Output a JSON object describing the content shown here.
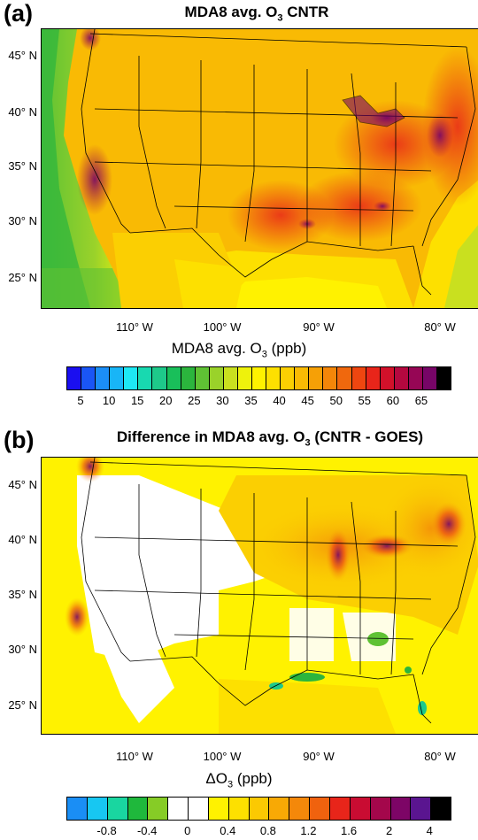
{
  "panel_a": {
    "letter": "(a)",
    "title": "MDA8 avg. O",
    "title_sub": "3",
    "title_tail": " CNTR",
    "xlabel_pre": "MDA8 avg. O",
    "xlabel_sub": "3",
    "xlabel_tail": " (ppb)",
    "lat_labels": [
      "45° N",
      "40° N",
      "35° N",
      "30° N",
      "25° N"
    ],
    "lon_labels": [
      "110° W",
      "100° W",
      "90° W",
      "80° W"
    ],
    "colorbar_ticks": [
      "5",
      "10",
      "15",
      "20",
      "25",
      "30",
      "35",
      "40",
      "45",
      "50",
      "55",
      "60",
      "65"
    ],
    "colorbar_colors": [
      "#1a0ff0",
      "#1a55f5",
      "#1b8ef7",
      "#18b5f7",
      "#1ee8f4",
      "#18d9b0",
      "#1ec98a",
      "#19bf5a",
      "#2bb53d",
      "#5fc234",
      "#9ad22a",
      "#c9e01f",
      "#eef20c",
      "#fff200",
      "#fde000",
      "#fbcf02",
      "#f9ba04",
      "#f6a006",
      "#f38609",
      "#f0680d",
      "#ee4610",
      "#e8251a",
      "#d2112a",
      "#b5083f",
      "#960655",
      "#770567",
      "#000000"
    ]
  },
  "panel_b": {
    "letter": "(b)",
    "title": "Difference in MDA8 avg. O",
    "title_sub": "3",
    "title_tail": " (CNTR - GOES)",
    "xlabel_pre": "ΔO",
    "xlabel_sub": "3",
    "xlabel_tail": " (ppb)",
    "lat_labels": [
      "45° N",
      "40° N",
      "35° N",
      "30° N",
      "25° N"
    ],
    "lon_labels": [
      "110° W",
      "100° W",
      "90° W",
      "80° W"
    ],
    "colorbar_ticks": [
      "-0.8",
      "-0.4",
      "0",
      "0.4",
      "0.8",
      "1.2",
      "1.6",
      "2",
      "4"
    ],
    "colorbar_colors": [
      "#1a8ef5",
      "#17c7f2",
      "#19d6a0",
      "#1fb83c",
      "#86cc26",
      "#ffffff",
      "#ffffff",
      "#fff200",
      "#fde000",
      "#fbc902",
      "#f8a905",
      "#f4880a",
      "#f0620e",
      "#e8251a",
      "#c90c32",
      "#a4074b",
      "#7d0566",
      "#5a1590",
      "#000000"
    ]
  }
}
